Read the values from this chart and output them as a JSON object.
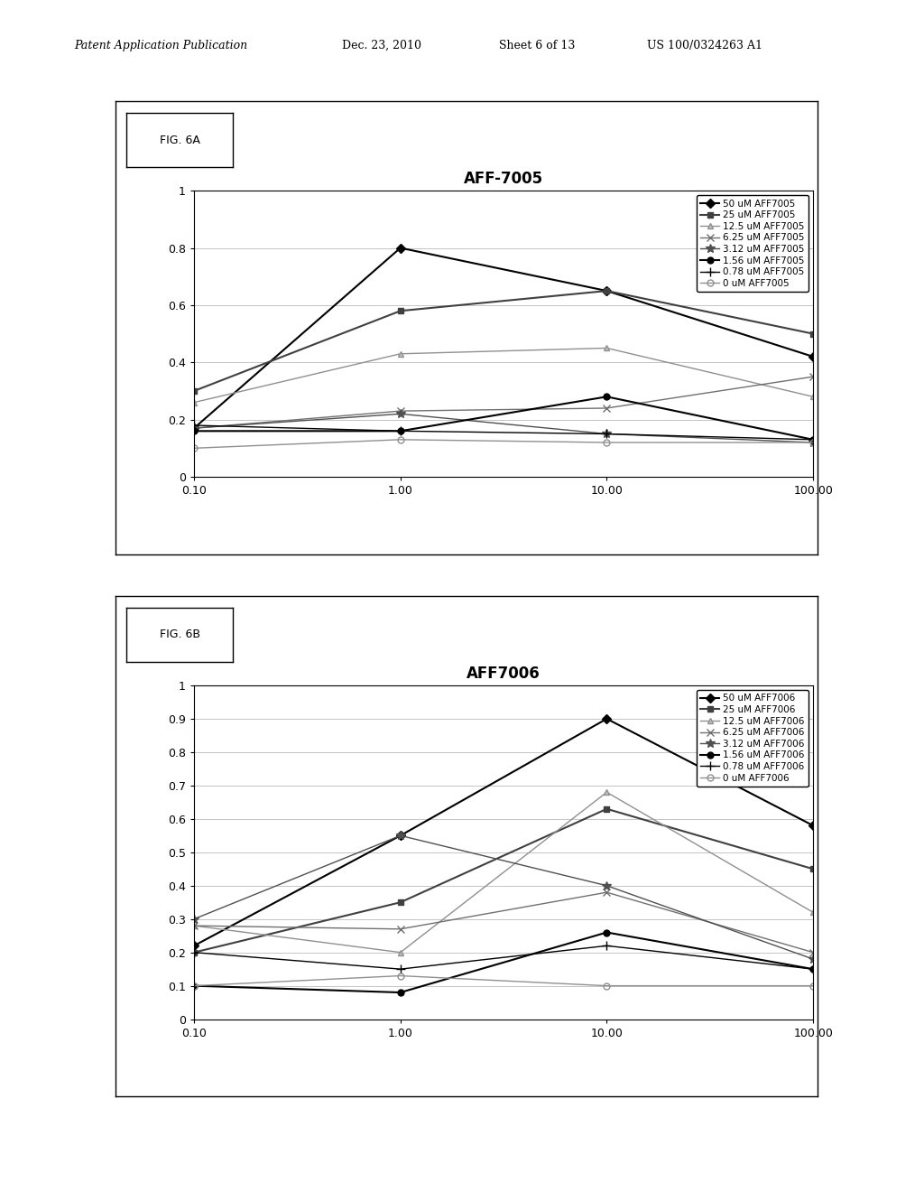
{
  "fig6a": {
    "title": "AFF-7005",
    "label": "FIG. 6A",
    "x": [
      0.1,
      1.0,
      10.0,
      100.0
    ],
    "series": [
      {
        "label": "50 uM AFF7005",
        "color": "#000000",
        "marker": "D",
        "markersize": 5,
        "linewidth": 1.5,
        "markerfacecolor": "#000000",
        "y": [
          0.17,
          0.8,
          0.65,
          0.42
        ]
      },
      {
        "label": "25 uM AFF7005",
        "color": "#404040",
        "marker": "s",
        "markersize": 5,
        "linewidth": 1.5,
        "markerfacecolor": "#404040",
        "y": [
          0.3,
          0.58,
          0.65,
          0.5
        ]
      },
      {
        "label": "12.5 uM AFF7005",
        "color": "#909090",
        "marker": "^",
        "markersize": 5,
        "linewidth": 1.0,
        "markerfacecolor": "#c0c0c0",
        "y": [
          0.26,
          0.43,
          0.45,
          0.28
        ]
      },
      {
        "label": "6.25 uM AFF7005",
        "color": "#707070",
        "marker": "x",
        "markersize": 6,
        "linewidth": 1.0,
        "markerfacecolor": "#707070",
        "y": [
          0.17,
          0.23,
          0.24,
          0.35
        ]
      },
      {
        "label": "3.12 uM AFF7005",
        "color": "#505050",
        "marker": "*",
        "markersize": 7,
        "linewidth": 1.0,
        "markerfacecolor": "#505050",
        "y": [
          0.17,
          0.22,
          0.15,
          0.12
        ]
      },
      {
        "label": "1.56 uM AFF7005",
        "color": "#000000",
        "marker": "o",
        "markersize": 5,
        "linewidth": 1.5,
        "markerfacecolor": "#000000",
        "y": [
          0.16,
          0.16,
          0.28,
          0.13
        ]
      },
      {
        "label": "0.78 uM AFF7005",
        "color": "#000000",
        "marker": "+",
        "markersize": 7,
        "linewidth": 1.0,
        "markerfacecolor": "#000000",
        "y": [
          0.18,
          0.16,
          0.15,
          0.13
        ]
      },
      {
        "label": "0 uM AFF7005",
        "color": "#909090",
        "marker": "o",
        "markersize": 5,
        "linewidth": 1.0,
        "markerfacecolor": "none",
        "y": [
          0.1,
          0.13,
          0.12,
          0.12
        ]
      }
    ],
    "ylim": [
      0,
      1
    ],
    "yticks": [
      0,
      0.2,
      0.4,
      0.6,
      0.8,
      1
    ],
    "xtick_labels": [
      "0.10",
      "1.00",
      "10.00",
      "100.00"
    ]
  },
  "fig6b": {
    "title": "AFF7006",
    "label": "FIG. 6B",
    "x": [
      0.1,
      1.0,
      10.0,
      100.0
    ],
    "series": [
      {
        "label": "50 uM AFF7006",
        "color": "#000000",
        "marker": "D",
        "markersize": 5,
        "linewidth": 1.5,
        "markerfacecolor": "#000000",
        "y": [
          0.22,
          0.55,
          0.9,
          0.58
        ]
      },
      {
        "label": "25 uM AFF7006",
        "color": "#404040",
        "marker": "s",
        "markersize": 5,
        "linewidth": 1.5,
        "markerfacecolor": "#404040",
        "y": [
          0.2,
          0.35,
          0.63,
          0.45
        ]
      },
      {
        "label": "12.5 uM AFF7006",
        "color": "#909090",
        "marker": "^",
        "markersize": 5,
        "linewidth": 1.0,
        "markerfacecolor": "#c0c0c0",
        "y": [
          0.28,
          0.2,
          0.68,
          0.32
        ]
      },
      {
        "label": "6.25 uM AFF7006",
        "color": "#707070",
        "marker": "x",
        "markersize": 6,
        "linewidth": 1.0,
        "markerfacecolor": "#707070",
        "y": [
          0.28,
          0.27,
          0.38,
          0.2
        ]
      },
      {
        "label": "3.12 uM AFF7006",
        "color": "#505050",
        "marker": "*",
        "markersize": 7,
        "linewidth": 1.0,
        "markerfacecolor": "#505050",
        "y": [
          0.3,
          0.55,
          0.4,
          0.18
        ]
      },
      {
        "label": "1.56 uM AFF7006",
        "color": "#000000",
        "marker": "o",
        "markersize": 5,
        "linewidth": 1.5,
        "markerfacecolor": "#000000",
        "y": [
          0.1,
          0.08,
          0.26,
          0.15
        ]
      },
      {
        "label": "0.78 uM AFF7006",
        "color": "#000000",
        "marker": "+",
        "markersize": 7,
        "linewidth": 1.0,
        "markerfacecolor": "#000000",
        "y": [
          0.2,
          0.15,
          0.22,
          0.15
        ]
      },
      {
        "label": "0 uM AFF7006",
        "color": "#909090",
        "marker": "o",
        "markersize": 5,
        "linewidth": 1.0,
        "markerfacecolor": "none",
        "y": [
          0.1,
          0.13,
          0.1,
          0.1
        ]
      }
    ],
    "ylim": [
      0,
      1
    ],
    "yticks": [
      0,
      0.1,
      0.2,
      0.3,
      0.4,
      0.5,
      0.6,
      0.7,
      0.8,
      0.9,
      1
    ],
    "xtick_labels": [
      "0.10",
      "1.00",
      "10.00",
      "100.00"
    ]
  },
  "header": {
    "part1": "Patent Application Publication",
    "part2": "Dec. 23, 2010",
    "part3": "Sheet 6 of 13",
    "part4": "US 100/0324263 A1"
  },
  "bg_color": "#ffffff",
  "grid_color": "#bbbbbb"
}
